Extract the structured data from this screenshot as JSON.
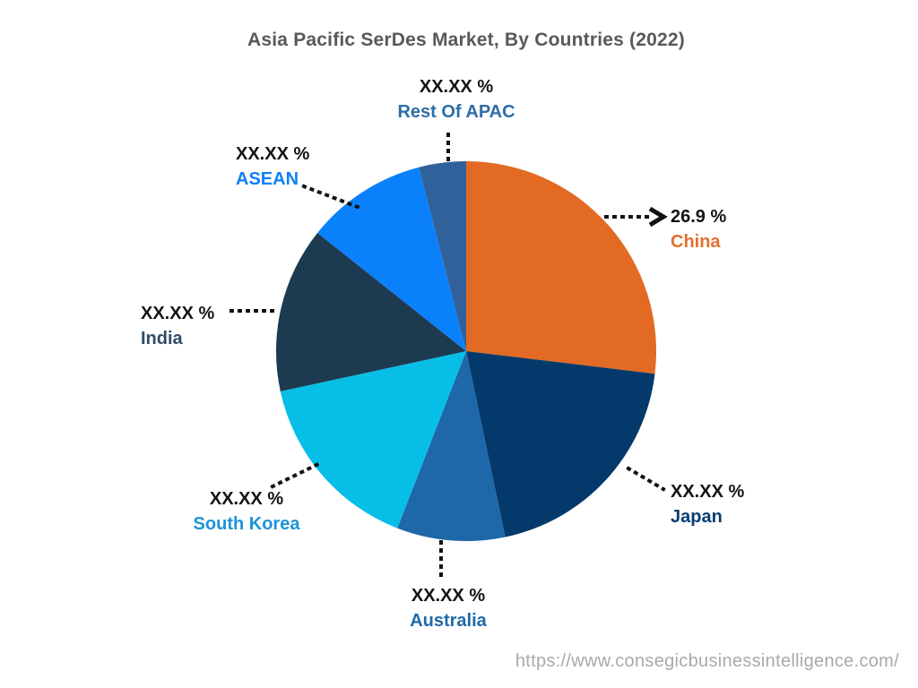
{
  "title": "Asia Pacific SerDes Market, By Countries (2022)",
  "watermark": "https://www.consegicbusinessintelligence.com/",
  "chart_data": {
    "type": "pie",
    "title": "Asia Pacific SerDes Market, By Countries (2022)",
    "categories": [
      "China",
      "Japan",
      "Australia",
      "South Korea",
      "India",
      "ASEAN",
      "Rest Of APAC"
    ],
    "values": [
      26.9,
      19.8,
      9.2,
      15.7,
      14.1,
      10.3,
      4.0
    ],
    "displayed_values": [
      "26.9 %",
      "XX.XX %",
      "XX.XX %",
      "XX.XX %",
      "XX.XX %",
      "XX.XX %",
      "XX.XX %"
    ],
    "colors": [
      "#E26A22",
      "#04396B",
      "#1E67A9",
      "#07BEE6",
      "#1C3A50",
      "#0B80FB",
      "#30619A"
    ],
    "label_colors": [
      "#E2702E",
      "#0A3D74",
      "#2069A8",
      "#1E93D6",
      "#2F4C66",
      "#0E7FF8",
      "#2E6DA8"
    ],
    "start_angle_deg": 0,
    "direction": "clockwise",
    "legend": "none",
    "leader_line_color": "#111111",
    "highlighted_value": "China 26.9 %"
  }
}
